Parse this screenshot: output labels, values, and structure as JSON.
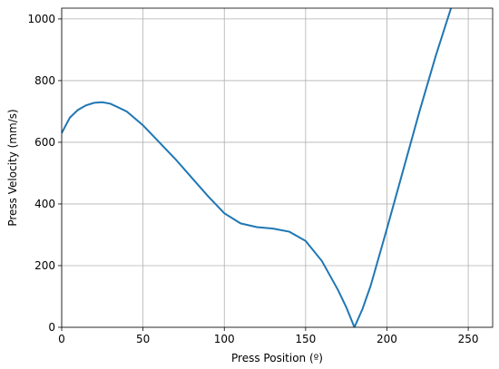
{
  "chart_data": {
    "type": "line",
    "xlabel": "Press Position (º)",
    "ylabel": "Press Velocity (mm/s)",
    "x": [
      0,
      5,
      10,
      15,
      20,
      25,
      30,
      40,
      50,
      60,
      70,
      80,
      90,
      100,
      110,
      120,
      130,
      140,
      150,
      160,
      170,
      175,
      180,
      185,
      190,
      200,
      210,
      220,
      230,
      240
    ],
    "series": [
      {
        "name": "Press Velocity",
        "color": "#1f77b4",
        "values": [
          630,
          680,
          705,
          720,
          728,
          730,
          725,
          700,
          655,
          600,
          545,
          485,
          425,
          370,
          337,
          325,
          320,
          310,
          280,
          215,
          120,
          65,
          0,
          60,
          135,
          320,
          510,
          700,
          880,
          1045
        ]
      }
    ],
    "xlim": [
      0,
      265
    ],
    "ylim": [
      0,
      1035
    ],
    "xticks": [
      0,
      50,
      100,
      150,
      200,
      250
    ],
    "yticks": [
      0,
      200,
      400,
      600,
      800,
      1000
    ],
    "grid": true
  }
}
